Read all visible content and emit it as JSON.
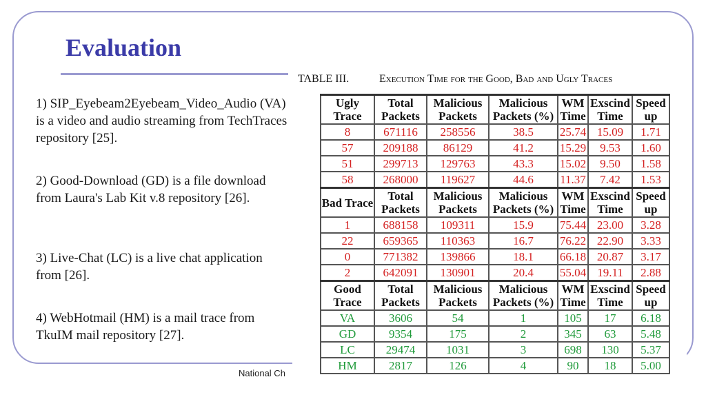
{
  "slide": {
    "title": "Evaluation",
    "footer_text": "National Ch"
  },
  "bullets": [
    "1) SIP_Eyebeam2Eyebeam_Video_Audio (VA) is a video and audio streaming from TechTraces repository [25].",
    "2) Good-Download (GD) is a file download from Laura's Lab Kit v.8 repository [26].",
    "3) Live-Chat (LC) is a live chat application from [26].",
    "4) WebHotmail (HM) is a mail trace from TkuIM mail repository [27]."
  ],
  "table": {
    "caption_number": "TABLE III.",
    "caption_title": "Execution Time for the Good, Bad and Ugly Traces",
    "groups": [
      {
        "headers": [
          "Ugly Trace",
          "Total Packets",
          "Malicious Packets",
          "Malicious Packets (%)",
          "WM Time",
          "Exscind Time",
          "Speed up"
        ],
        "color": "#d42020",
        "rows": [
          [
            "8",
            "671116",
            "258556",
            "38.5",
            "25.74",
            "15.09",
            "1.71"
          ],
          [
            "57",
            "209188",
            "86129",
            "41.2",
            "15.29",
            "9.53",
            "1.60"
          ],
          [
            "51",
            "299713",
            "129763",
            "43.3",
            "15.02",
            "9.50",
            "1.58"
          ],
          [
            "58",
            "268000",
            "119627",
            "44.6",
            "11.37",
            "7.42",
            "1.53"
          ]
        ]
      },
      {
        "headers": [
          "Bad Trace",
          "Total Packets",
          "Malicious Packets",
          "Malicious Packets (%)",
          "WM Time",
          "Exscind Time",
          "Speed up"
        ],
        "color": "#d42020",
        "rows": [
          [
            "1",
            "688158",
            "109311",
            "15.9",
            "75.44",
            "23.00",
            "3.28"
          ],
          [
            "22",
            "659365",
            "110363",
            "16.7",
            "76.22",
            "22.90",
            "3.33"
          ],
          [
            "0",
            "771382",
            "139866",
            "18.1",
            "66.18",
            "20.87",
            "3.17"
          ],
          [
            "2",
            "642091",
            "130901",
            "20.4",
            "55.04",
            "19.11",
            "2.88"
          ]
        ]
      },
      {
        "headers": [
          "Good Trace",
          "Total Packets",
          "Malicious Packets",
          "Malicious Packets (%)",
          "WM Time",
          "Exscind Time",
          "Speed up"
        ],
        "color": "#1f9a3a",
        "rows": [
          [
            "VA",
            "3606",
            "54",
            "1",
            "105",
            "17",
            "6.18"
          ],
          [
            "GD",
            "9354",
            "175",
            "2",
            "345",
            "63",
            "5.48"
          ],
          [
            "LC",
            "29474",
            "1031",
            "3",
            "698",
            "130",
            "5.37"
          ],
          [
            "HM",
            "2817",
            "126",
            "4",
            "90",
            "18",
            "5.00"
          ]
        ]
      }
    ]
  }
}
